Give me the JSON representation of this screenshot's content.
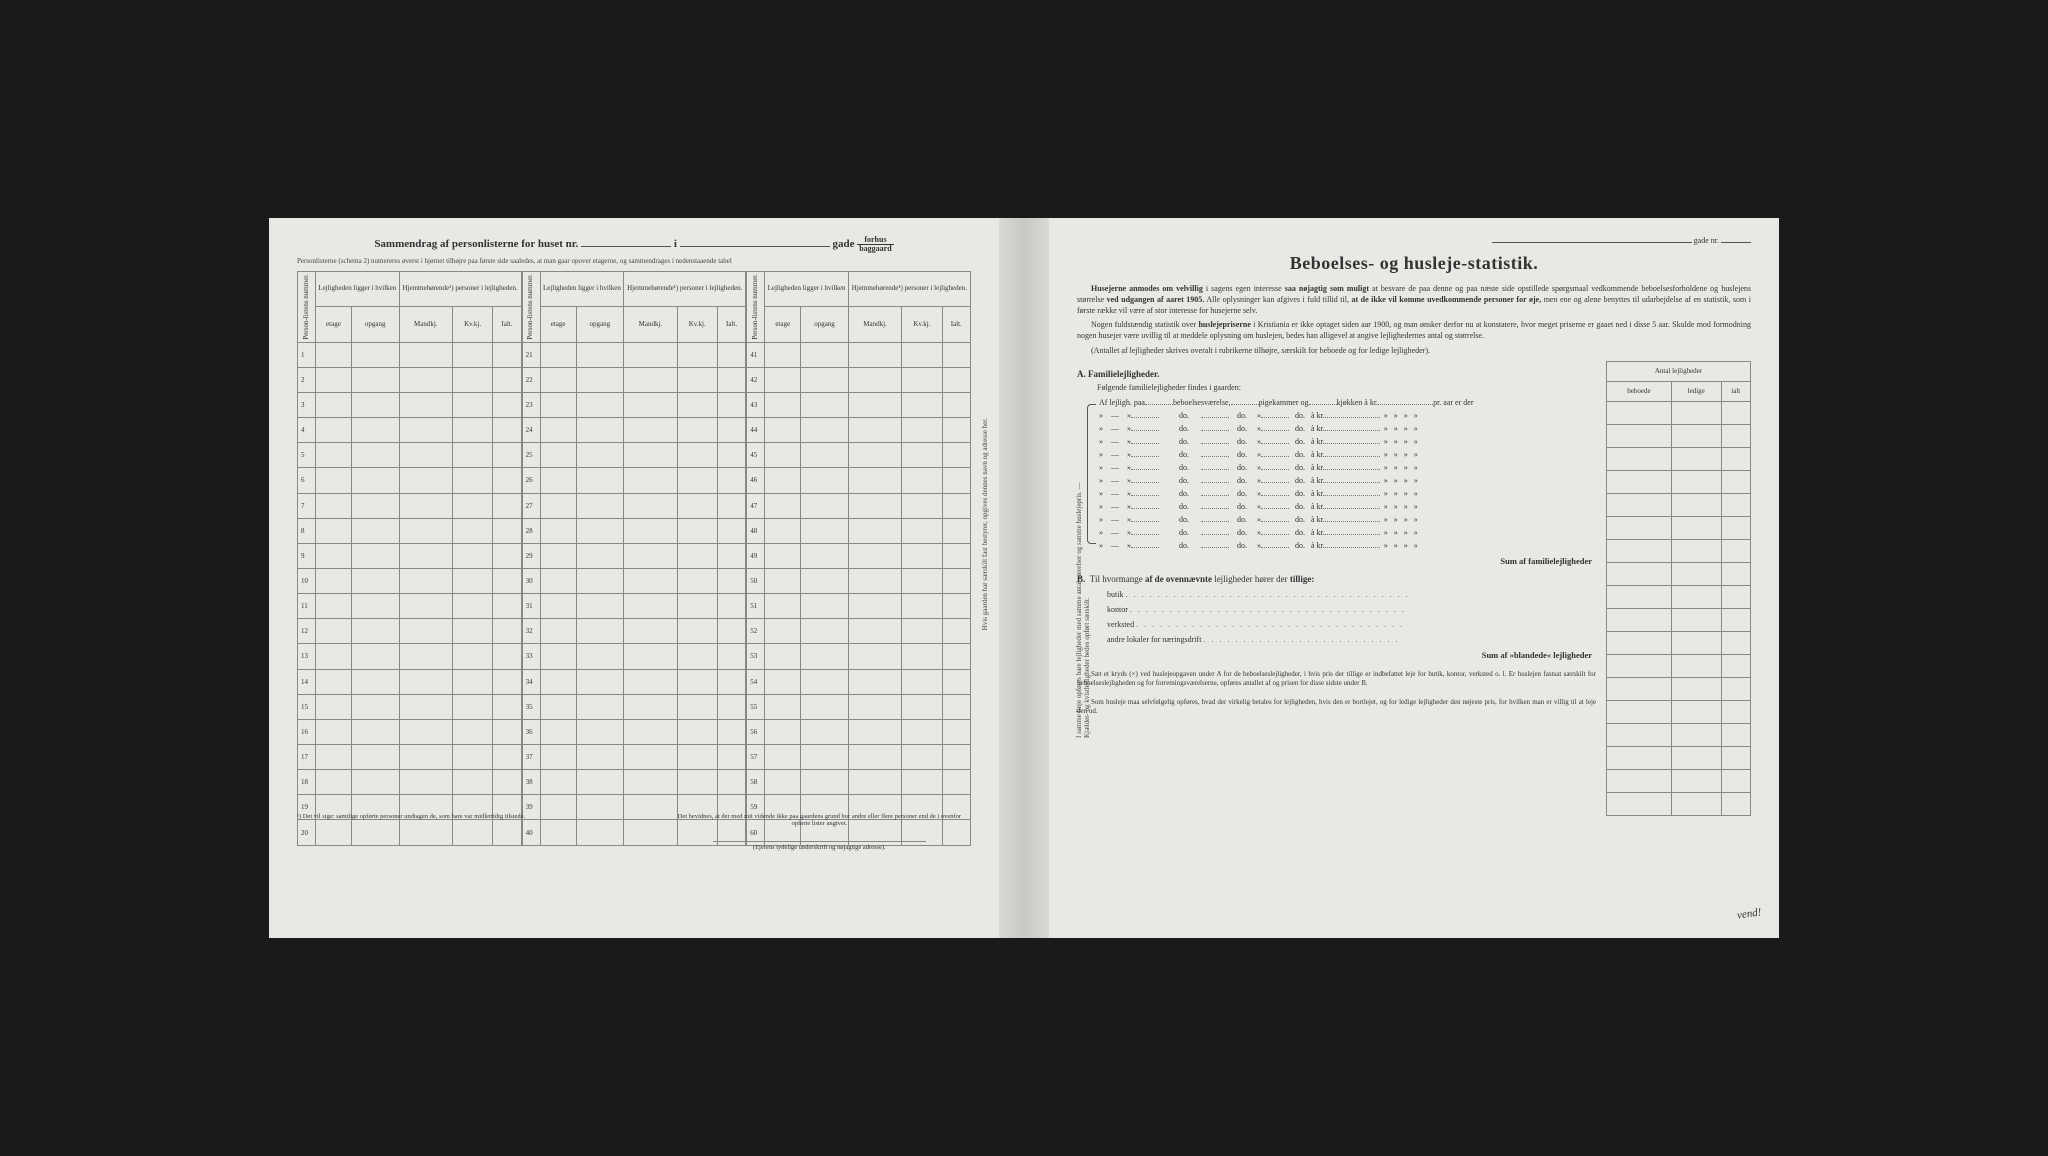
{
  "left": {
    "title_pre": "Sammendrag af personlisterne for huset nr.",
    "title_mid": "i",
    "title_post": "gade",
    "title_frac_top": "forhus",
    "title_frac_bot": "baggaard",
    "subline": "Personlisterne (schema 2) numereres øverst i hjørnet tilhøjre paa første side saaledes, at man gaar opover etagerne, og sammendrages i nedenstaaende tabel",
    "head_person": "Person-listens nummer.",
    "head_lej": "Lejligheden ligger i hvilken",
    "head_hjem": "Hjemmehørende¹) personer i lejligheden.",
    "sub_etage": "etage",
    "sub_opgang": "opgang",
    "sub_mand": "Mandkj.",
    "sub_kv": "Kv.kj.",
    "sub_ialt": "Ialt.",
    "rows1": [
      "1",
      "2",
      "3",
      "4",
      "5",
      "6",
      "7",
      "8",
      "9",
      "10",
      "11",
      "12",
      "13",
      "14",
      "15",
      "16",
      "17",
      "18",
      "19",
      "20"
    ],
    "rows2": [
      "21",
      "22",
      "23",
      "24",
      "25",
      "26",
      "27",
      "28",
      "29",
      "30",
      "31",
      "32",
      "33",
      "34",
      "35",
      "36",
      "37",
      "38",
      "39",
      "40"
    ],
    "rows3": [
      "41",
      "42",
      "43",
      "44",
      "45",
      "46",
      "47",
      "48",
      "49",
      "50",
      "51",
      "52",
      "53",
      "54",
      "55",
      "56",
      "57",
      "58",
      "59",
      "60"
    ],
    "foot_left": "¹) Det vil sige: samtlige opførte personer undtagen de, som bare var midlertidig tilstede.",
    "foot_right_1": "Det bevidnes, at der med mit vidende ikke paa gaardens grund bor andre eller flere personer end de i ovenfor opførte lister angivet.",
    "foot_right_2": "(Ejerens tydelige underskrift og nøjagtige adresse).",
    "vertical": "Hvis gaarden har særskilt fast bestyrer, opgives dennes navn og adresse her."
  },
  "right": {
    "gade": "gade nr.",
    "title": "Beboelses- og husleje-statistik.",
    "p1": "Husejerne anmodes om velvillig i sagens egen interesse saa nøjagtig som muligt at besvare de paa denne og paa næste side opstillede spørgsmaal vedkommende beboelsesforholdene og huslejens størrelse ved udgangen af aaret 1905. Alle oplysninger kan afgives i fuld tillid til, at de ikke vil komme uvedkommende personer for øje, men ene og alene benyttes til udarbejdelse af en statistik, som i første række vil være af stor interesse for husejerne selv.",
    "p2": "Nogen fuldstændig statistik over huslejepriserne i Kristiania er ikke optaget siden aar 1900, og man ønsker derfor nu at konstatere, hvor meget priserne er gaaet ned i disse 5 aar. Skulde mod formodning nogen husejer være uvillig til at meddele oplysning om huslejen, bedes han alligevel at angive lejlighedernes antal og størrelse.",
    "p3": "(Antallet af lejligheder skrives overalt i rubrikerne tilhøjre, særskilt for beboede og for ledige lejligheder).",
    "secA": "A.  Familielejligheder.",
    "secA_sub": "Følgende familielejligheder findes i gaarden:",
    "fam_first": "Af lejligh. paa ______ beboelsesværelse, ______ pigekammer og ______ kjøkken à kr. ______ pr. aar er der",
    "fam_do": "do.",
    "fam_akr": "à kr.",
    "brace_note": "I samme linje opføres bare lejligheder med samme antal værelser og samme huslejepris. — Kjælder- og kvistlejligheder bedes opført særskilt.",
    "sumA": "Sum af familielejligheder",
    "secB": "B.  Til hvormange af de ovennævnte lejligheder hører der tillige:",
    "b1": "butik",
    "b2": "kontor",
    "b3": "verksted",
    "b4": "andre lokaler for næringsdrift",
    "sumB": "Sum af »blandede« lejligheder",
    "side_head": "Antal lejligheder",
    "side_c1": "beboede",
    "side_c2": "ledige",
    "side_c3": "ialt",
    "foot1": "Sæt et kryds (×) ved huslejeopgaven under A for de beboelseslejligheder, i hvis pris der tillige er indbefattet leje for butik, kontor, verksted o. l. Er huslejen fastsat særskilt for beboelseslejligheden og for forretningsværelserne, opføres antallet af og prisen for disse sidste under B.",
    "foot2": "Som husleje maa selvfølgelig opføres, hvad der virkelig betales for lejligheden, hvis den er bortlejet, og for ledige lejligheder den nøjeste pris, for hvilken man er villig til at leje den ud.",
    "vend": "vend!"
  }
}
